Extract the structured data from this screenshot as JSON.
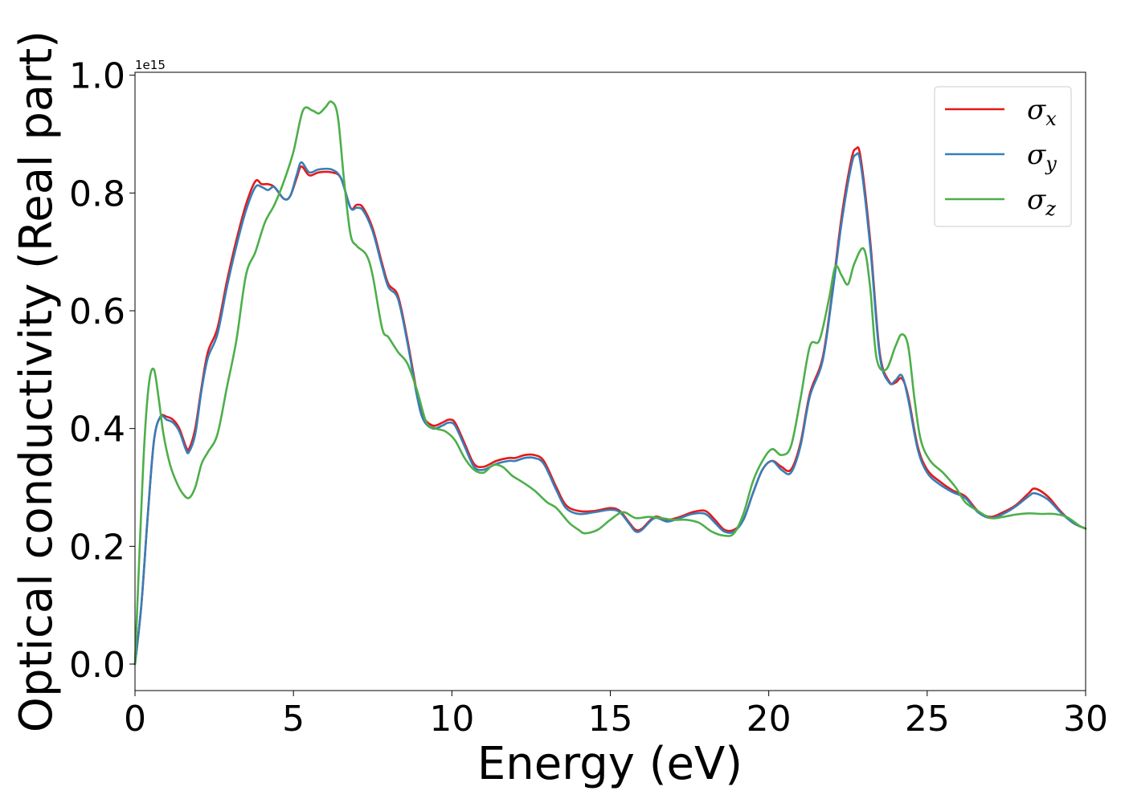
{
  "chart_data": {
    "type": "line",
    "title": "",
    "xlabel": "Energy (eV)",
    "ylabel": "Optical conductivity (Real part)",
    "y_offset_label": "1e15",
    "xlim": [
      0,
      30
    ],
    "ylim": [
      -0.045,
      1.005
    ],
    "xticks": [
      0,
      5,
      10,
      15,
      20,
      25,
      30
    ],
    "xtick_labels": [
      "0",
      "5",
      "10",
      "15",
      "20",
      "25",
      "30"
    ],
    "yticks": [
      0.0,
      0.2,
      0.4,
      0.6,
      0.8,
      1.0
    ],
    "ytick_labels": [
      "0.0",
      "0.2",
      "0.4",
      "0.6",
      "0.8",
      "1.0"
    ],
    "grid": false,
    "legend_position": "upper right",
    "colors": {
      "x": "#e41a1c",
      "y": "#377eb8",
      "z": "#4daf4a"
    },
    "series": [
      {
        "key": "x",
        "symbol": "σ",
        "subscript": "x",
        "points": [
          [
            0,
            0
          ],
          [
            0.2,
            0.1
          ],
          [
            0.4,
            0.25
          ],
          [
            0.6,
            0.38
          ],
          [
            0.8,
            0.42
          ],
          [
            1.0,
            0.42
          ],
          [
            1.2,
            0.415
          ],
          [
            1.4,
            0.4
          ],
          [
            1.6,
            0.37
          ],
          [
            1.7,
            0.365
          ],
          [
            1.9,
            0.4
          ],
          [
            2.1,
            0.47
          ],
          [
            2.3,
            0.53
          ],
          [
            2.6,
            0.57
          ],
          [
            2.9,
            0.65
          ],
          [
            3.2,
            0.72
          ],
          [
            3.5,
            0.78
          ],
          [
            3.8,
            0.82
          ],
          [
            4.0,
            0.815
          ],
          [
            4.2,
            0.815
          ],
          [
            4.4,
            0.81
          ],
          [
            4.7,
            0.79
          ],
          [
            4.9,
            0.795
          ],
          [
            5.1,
            0.825
          ],
          [
            5.25,
            0.845
          ],
          [
            5.5,
            0.83
          ],
          [
            5.8,
            0.835
          ],
          [
            6.2,
            0.835
          ],
          [
            6.5,
            0.825
          ],
          [
            6.8,
            0.775
          ],
          [
            7.0,
            0.78
          ],
          [
            7.2,
            0.775
          ],
          [
            7.5,
            0.74
          ],
          [
            7.8,
            0.68
          ],
          [
            8.0,
            0.645
          ],
          [
            8.3,
            0.625
          ],
          [
            8.6,
            0.55
          ],
          [
            8.9,
            0.46
          ],
          [
            9.1,
            0.42
          ],
          [
            9.4,
            0.405
          ],
          [
            9.7,
            0.41
          ],
          [
            9.9,
            0.415
          ],
          [
            10.1,
            0.41
          ],
          [
            10.4,
            0.375
          ],
          [
            10.7,
            0.34
          ],
          [
            11.0,
            0.335
          ],
          [
            11.4,
            0.345
          ],
          [
            11.8,
            0.35
          ],
          [
            12.0,
            0.35
          ],
          [
            12.3,
            0.355
          ],
          [
            12.6,
            0.355
          ],
          [
            12.9,
            0.345
          ],
          [
            13.3,
            0.3
          ],
          [
            13.6,
            0.27
          ],
          [
            14.0,
            0.26
          ],
          [
            14.5,
            0.26
          ],
          [
            15.0,
            0.265
          ],
          [
            15.3,
            0.26
          ],
          [
            15.6,
            0.24
          ],
          [
            15.8,
            0.228
          ],
          [
            16.0,
            0.23
          ],
          [
            16.4,
            0.25
          ],
          [
            16.8,
            0.245
          ],
          [
            17.2,
            0.25
          ],
          [
            17.6,
            0.258
          ],
          [
            18.0,
            0.26
          ],
          [
            18.3,
            0.245
          ],
          [
            18.6,
            0.228
          ],
          [
            18.9,
            0.228
          ],
          [
            19.2,
            0.245
          ],
          [
            19.5,
            0.29
          ],
          [
            19.8,
            0.33
          ],
          [
            20.1,
            0.345
          ],
          [
            20.4,
            0.335
          ],
          [
            20.7,
            0.33
          ],
          [
            21.0,
            0.375
          ],
          [
            21.3,
            0.46
          ],
          [
            21.7,
            0.52
          ],
          [
            22.0,
            0.63
          ],
          [
            22.3,
            0.76
          ],
          [
            22.6,
            0.855
          ],
          [
            22.75,
            0.875
          ],
          [
            22.9,
            0.86
          ],
          [
            23.2,
            0.72
          ],
          [
            23.5,
            0.53
          ],
          [
            23.8,
            0.48
          ],
          [
            24.0,
            0.478
          ],
          [
            24.2,
            0.485
          ],
          [
            24.4,
            0.455
          ],
          [
            24.7,
            0.37
          ],
          [
            25.0,
            0.33
          ],
          [
            25.4,
            0.31
          ],
          [
            25.8,
            0.295
          ],
          [
            26.2,
            0.285
          ],
          [
            26.6,
            0.26
          ],
          [
            27.0,
            0.25
          ],
          [
            27.4,
            0.258
          ],
          [
            27.8,
            0.27
          ],
          [
            28.2,
            0.29
          ],
          [
            28.4,
            0.298
          ],
          [
            28.8,
            0.285
          ],
          [
            29.2,
            0.26
          ],
          [
            29.6,
            0.24
          ],
          [
            30.0,
            0.23
          ]
        ]
      },
      {
        "key": "y",
        "symbol": "σ",
        "subscript": "y",
        "points": [
          [
            0,
            0
          ],
          [
            0.2,
            0.1
          ],
          [
            0.4,
            0.25
          ],
          [
            0.6,
            0.38
          ],
          [
            0.8,
            0.42
          ],
          [
            1.0,
            0.415
          ],
          [
            1.2,
            0.41
          ],
          [
            1.4,
            0.395
          ],
          [
            1.6,
            0.365
          ],
          [
            1.7,
            0.36
          ],
          [
            1.9,
            0.39
          ],
          [
            2.1,
            0.465
          ],
          [
            2.3,
            0.52
          ],
          [
            2.6,
            0.56
          ],
          [
            2.9,
            0.64
          ],
          [
            3.2,
            0.71
          ],
          [
            3.5,
            0.77
          ],
          [
            3.8,
            0.81
          ],
          [
            4.0,
            0.81
          ],
          [
            4.2,
            0.805
          ],
          [
            4.4,
            0.81
          ],
          [
            4.7,
            0.79
          ],
          [
            4.9,
            0.795
          ],
          [
            5.1,
            0.83
          ],
          [
            5.25,
            0.852
          ],
          [
            5.5,
            0.835
          ],
          [
            5.8,
            0.84
          ],
          [
            6.2,
            0.84
          ],
          [
            6.5,
            0.825
          ],
          [
            6.8,
            0.775
          ],
          [
            7.0,
            0.775
          ],
          [
            7.2,
            0.77
          ],
          [
            7.5,
            0.735
          ],
          [
            7.8,
            0.675
          ],
          [
            8.0,
            0.64
          ],
          [
            8.3,
            0.62
          ],
          [
            8.6,
            0.545
          ],
          [
            8.9,
            0.455
          ],
          [
            9.1,
            0.415
          ],
          [
            9.4,
            0.4
          ],
          [
            9.7,
            0.405
          ],
          [
            9.9,
            0.41
          ],
          [
            10.1,
            0.405
          ],
          [
            10.4,
            0.37
          ],
          [
            10.7,
            0.335
          ],
          [
            11.0,
            0.33
          ],
          [
            11.4,
            0.34
          ],
          [
            11.8,
            0.345
          ],
          [
            12.0,
            0.345
          ],
          [
            12.3,
            0.35
          ],
          [
            12.6,
            0.35
          ],
          [
            12.9,
            0.34
          ],
          [
            13.3,
            0.295
          ],
          [
            13.6,
            0.265
          ],
          [
            14.0,
            0.255
          ],
          [
            14.5,
            0.258
          ],
          [
            15.0,
            0.262
          ],
          [
            15.3,
            0.258
          ],
          [
            15.6,
            0.238
          ],
          [
            15.8,
            0.225
          ],
          [
            16.0,
            0.228
          ],
          [
            16.4,
            0.248
          ],
          [
            16.8,
            0.242
          ],
          [
            17.2,
            0.248
          ],
          [
            17.6,
            0.255
          ],
          [
            18.0,
            0.255
          ],
          [
            18.3,
            0.24
          ],
          [
            18.6,
            0.225
          ],
          [
            18.9,
            0.225
          ],
          [
            19.2,
            0.245
          ],
          [
            19.5,
            0.29
          ],
          [
            19.8,
            0.33
          ],
          [
            20.1,
            0.345
          ],
          [
            20.4,
            0.33
          ],
          [
            20.7,
            0.325
          ],
          [
            21.0,
            0.37
          ],
          [
            21.3,
            0.455
          ],
          [
            21.7,
            0.515
          ],
          [
            22.0,
            0.625
          ],
          [
            22.3,
            0.75
          ],
          [
            22.6,
            0.845
          ],
          [
            22.75,
            0.865
          ],
          [
            22.9,
            0.85
          ],
          [
            23.2,
            0.71
          ],
          [
            23.5,
            0.525
          ],
          [
            23.8,
            0.478
          ],
          [
            24.0,
            0.482
          ],
          [
            24.2,
            0.49
          ],
          [
            24.4,
            0.45
          ],
          [
            24.7,
            0.365
          ],
          [
            25.0,
            0.325
          ],
          [
            25.4,
            0.305
          ],
          [
            25.8,
            0.292
          ],
          [
            26.2,
            0.282
          ],
          [
            26.6,
            0.258
          ],
          [
            27.0,
            0.248
          ],
          [
            27.4,
            0.255
          ],
          [
            27.8,
            0.268
          ],
          [
            28.2,
            0.285
          ],
          [
            28.4,
            0.29
          ],
          [
            28.8,
            0.28
          ],
          [
            29.2,
            0.258
          ],
          [
            29.6,
            0.24
          ],
          [
            30.0,
            0.23
          ]
        ]
      },
      {
        "key": "z",
        "symbol": "σ",
        "subscript": "z",
        "points": [
          [
            0,
            0
          ],
          [
            0.15,
            0.2
          ],
          [
            0.3,
            0.38
          ],
          [
            0.45,
            0.48
          ],
          [
            0.6,
            0.5
          ],
          [
            0.75,
            0.45
          ],
          [
            0.9,
            0.39
          ],
          [
            1.1,
            0.34
          ],
          [
            1.3,
            0.31
          ],
          [
            1.5,
            0.29
          ],
          [
            1.7,
            0.282
          ],
          [
            1.9,
            0.3
          ],
          [
            2.1,
            0.34
          ],
          [
            2.3,
            0.36
          ],
          [
            2.6,
            0.39
          ],
          [
            2.9,
            0.47
          ],
          [
            3.2,
            0.55
          ],
          [
            3.5,
            0.66
          ],
          [
            3.8,
            0.7
          ],
          [
            4.1,
            0.75
          ],
          [
            4.4,
            0.78
          ],
          [
            4.7,
            0.82
          ],
          [
            5.0,
            0.87
          ],
          [
            5.3,
            0.94
          ],
          [
            5.6,
            0.94
          ],
          [
            5.8,
            0.935
          ],
          [
            6.0,
            0.945
          ],
          [
            6.2,
            0.955
          ],
          [
            6.4,
            0.93
          ],
          [
            6.6,
            0.82
          ],
          [
            6.8,
            0.73
          ],
          [
            7.0,
            0.71
          ],
          [
            7.3,
            0.695
          ],
          [
            7.5,
            0.66
          ],
          [
            7.8,
            0.57
          ],
          [
            8.0,
            0.555
          ],
          [
            8.3,
            0.53
          ],
          [
            8.6,
            0.51
          ],
          [
            8.9,
            0.465
          ],
          [
            9.2,
            0.41
          ],
          [
            9.5,
            0.4
          ],
          [
            9.8,
            0.395
          ],
          [
            10.1,
            0.38
          ],
          [
            10.4,
            0.35
          ],
          [
            10.7,
            0.33
          ],
          [
            11.0,
            0.325
          ],
          [
            11.3,
            0.338
          ],
          [
            11.6,
            0.335
          ],
          [
            11.9,
            0.32
          ],
          [
            12.2,
            0.31
          ],
          [
            12.6,
            0.295
          ],
          [
            13.0,
            0.275
          ],
          [
            13.3,
            0.265
          ],
          [
            13.7,
            0.24
          ],
          [
            14.0,
            0.228
          ],
          [
            14.2,
            0.222
          ],
          [
            14.6,
            0.228
          ],
          [
            15.0,
            0.245
          ],
          [
            15.4,
            0.258
          ],
          [
            15.8,
            0.248
          ],
          [
            16.2,
            0.25
          ],
          [
            16.6,
            0.248
          ],
          [
            17.0,
            0.245
          ],
          [
            17.4,
            0.245
          ],
          [
            17.8,
            0.24
          ],
          [
            18.2,
            0.225
          ],
          [
            18.6,
            0.218
          ],
          [
            18.9,
            0.222
          ],
          [
            19.2,
            0.255
          ],
          [
            19.5,
            0.31
          ],
          [
            19.8,
            0.345
          ],
          [
            20.1,
            0.365
          ],
          [
            20.4,
            0.355
          ],
          [
            20.7,
            0.37
          ],
          [
            21.0,
            0.45
          ],
          [
            21.3,
            0.54
          ],
          [
            21.6,
            0.55
          ],
          [
            21.9,
            0.62
          ],
          [
            22.1,
            0.675
          ],
          [
            22.3,
            0.66
          ],
          [
            22.5,
            0.645
          ],
          [
            22.7,
            0.68
          ],
          [
            23.0,
            0.705
          ],
          [
            23.2,
            0.64
          ],
          [
            23.4,
            0.52
          ],
          [
            23.7,
            0.5
          ],
          [
            24.0,
            0.54
          ],
          [
            24.2,
            0.56
          ],
          [
            24.4,
            0.54
          ],
          [
            24.6,
            0.45
          ],
          [
            24.8,
            0.38
          ],
          [
            25.1,
            0.345
          ],
          [
            25.5,
            0.325
          ],
          [
            25.9,
            0.3
          ],
          [
            26.2,
            0.275
          ],
          [
            26.6,
            0.26
          ],
          [
            27.0,
            0.248
          ],
          [
            27.4,
            0.25
          ],
          [
            27.8,
            0.254
          ],
          [
            28.2,
            0.256
          ],
          [
            28.6,
            0.255
          ],
          [
            29.0,
            0.255
          ],
          [
            29.4,
            0.25
          ],
          [
            29.8,
            0.235
          ],
          [
            30.0,
            0.23
          ]
        ]
      }
    ]
  }
}
